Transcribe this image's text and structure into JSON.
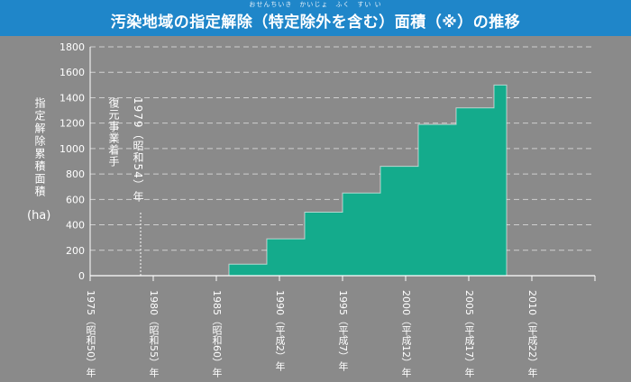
{
  "header": {
    "title": "汚染地域の指定解除（特定除外を含む）面積（※）の推移",
    "furigana": "おせんちいき　かいじょ　ふく　すい い"
  },
  "y_axis_label": "指定解除累積面積",
  "y_axis_unit": "(ha)",
  "annotation": {
    "restore_label": "復元事業着手",
    "year_label": "1979（昭和54）年"
  },
  "colors": {
    "background": "#8a8a8a",
    "header": "#1f86c9",
    "bars": "#14ab8c",
    "grid": "#cfcfcf",
    "text": "#ffffff"
  },
  "chart_data": {
    "type": "area",
    "title": "汚染地域の指定解除（特定除外を含む）面積（※）の推移",
    "xlabel": "",
    "ylabel": "指定解除累積面積 (ha)",
    "ylim": [
      0,
      1800
    ],
    "yticks": [
      0,
      200,
      400,
      600,
      800,
      1000,
      1200,
      1400,
      1600,
      1800
    ],
    "xlim": [
      1975,
      2015
    ],
    "grid": true,
    "step_series": [
      {
        "x": 1986,
        "y": 90
      },
      {
        "x": 1989,
        "y": 290
      },
      {
        "x": 1992,
        "y": 500
      },
      {
        "x": 1995,
        "y": 650
      },
      {
        "x": 1998,
        "y": 860
      },
      {
        "x": 2001,
        "y": 1190
      },
      {
        "x": 2004,
        "y": 1320
      },
      {
        "x": 2007,
        "y": 1500
      },
      {
        "x": 2008,
        "y": 1500
      }
    ],
    "x_ticks": [
      {
        "year": 1975,
        "label": "1975（昭和50）年"
      },
      {
        "year": 1980,
        "label": "1980（昭和55）年"
      },
      {
        "year": 1985,
        "label": "1985（昭和60）年"
      },
      {
        "year": 1990,
        "label": "1990（平成2）年"
      },
      {
        "year": 1995,
        "label": "1995（平成7）年"
      },
      {
        "year": 2000,
        "label": "2000（平成12）年"
      },
      {
        "year": 2005,
        "label": "2005（平成17）年"
      },
      {
        "year": 2010,
        "label": "2010（平成22）年"
      }
    ],
    "annotation_year": 1979
  }
}
